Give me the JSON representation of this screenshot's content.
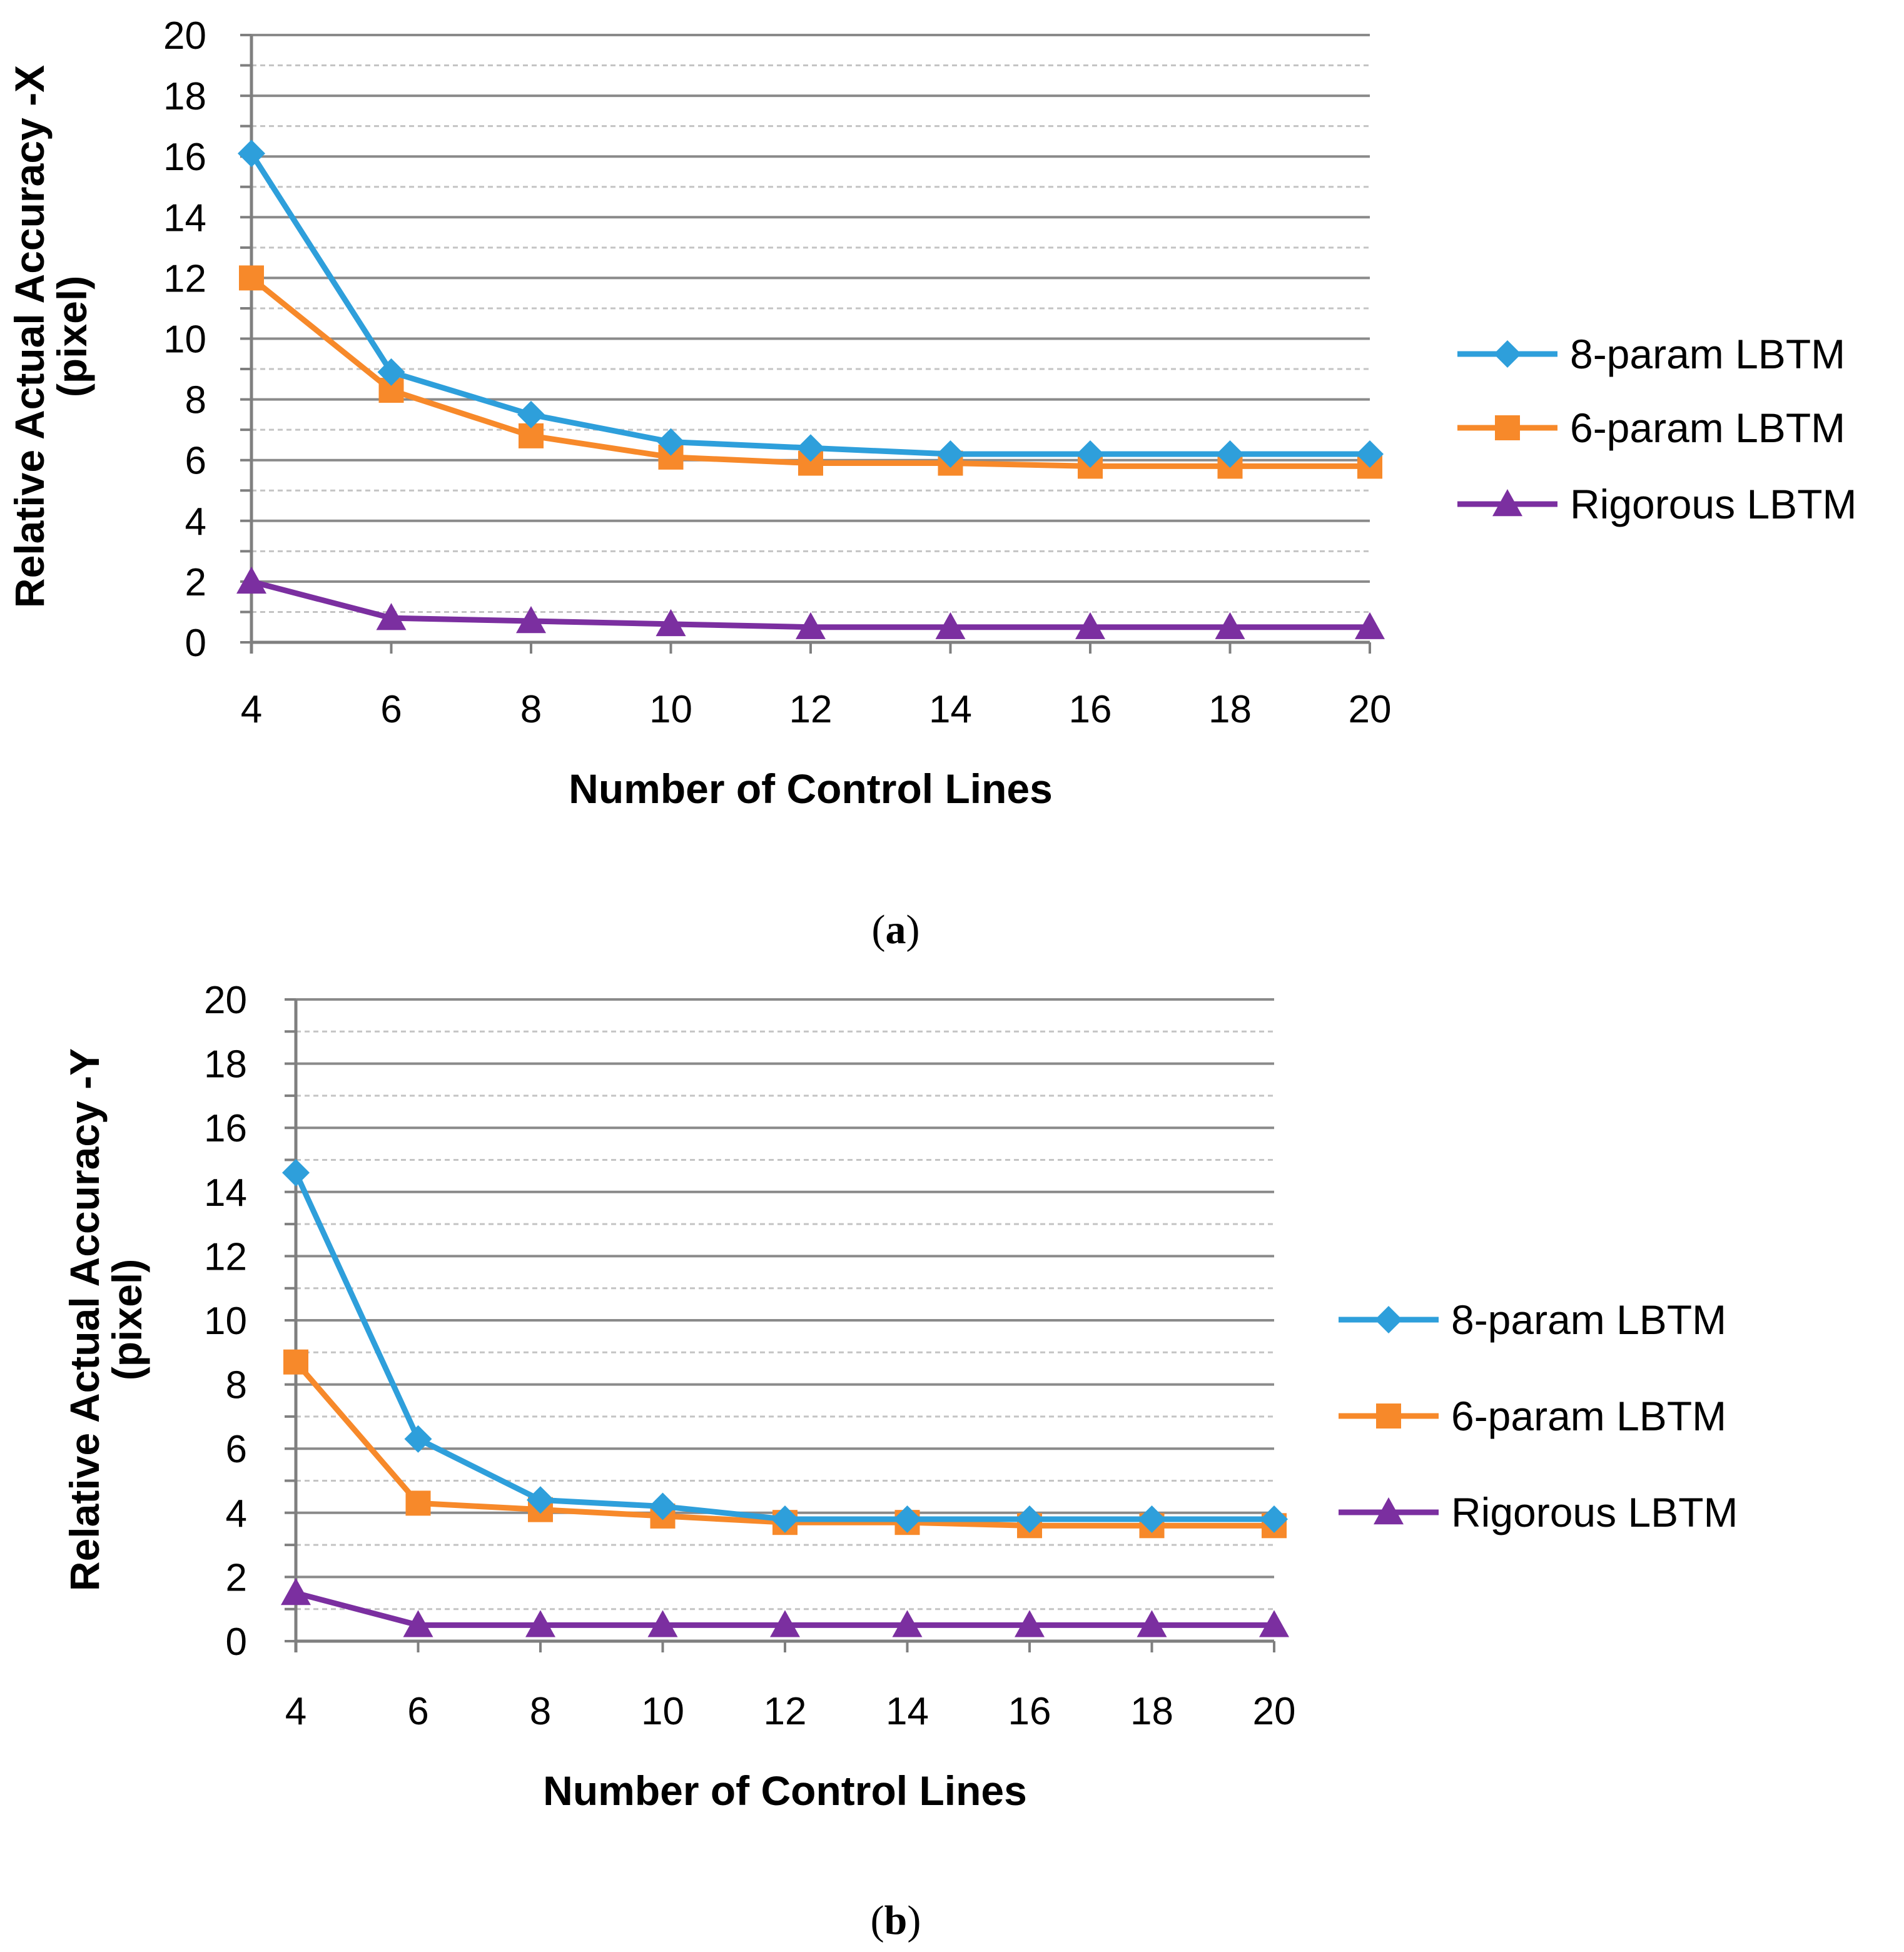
{
  "chart_data": [
    {
      "type": "line",
      "panel_label": "a",
      "xlabel": "Number of Control Lines",
      "ylabel_line1": "Relative Actual Accuracy -X",
      "ylabel_line2": "(pixel)",
      "x": [
        4,
        6,
        8,
        10,
        12,
        14,
        16,
        18,
        20
      ],
      "xticks": [
        "4",
        "6",
        "8",
        "10",
        "12",
        "14",
        "16",
        "18",
        "20"
      ],
      "ylim": [
        0,
        20
      ],
      "yticks": [
        "0",
        "2",
        "4",
        "6",
        "8",
        "10",
        "12",
        "14",
        "16",
        "18",
        "20"
      ],
      "major_grid_step": 2,
      "minor_grid": true,
      "legend_position": "right",
      "series": [
        {
          "name": "8-param LBTM",
          "color": "#2E9FDB",
          "marker": "diamond",
          "values": [
            16.1,
            8.9,
            7.5,
            6.6,
            6.4,
            6.2,
            6.2,
            6.2,
            6.2
          ]
        },
        {
          "name": "6-param LBTM",
          "color": "#F7892A",
          "marker": "square",
          "values": [
            12.0,
            8.3,
            6.8,
            6.1,
            5.9,
            5.9,
            5.8,
            5.8,
            5.8
          ]
        },
        {
          "name": "Rigorous LBTM",
          "color": "#7B2FA0",
          "marker": "triangle",
          "values": [
            2.0,
            0.8,
            0.7,
            0.6,
            0.5,
            0.5,
            0.5,
            0.5,
            0.5
          ]
        }
      ]
    },
    {
      "type": "line",
      "panel_label": "b",
      "xlabel": "Number of Control Lines",
      "ylabel_line1": "Relative Actual Accuracy -Y",
      "ylabel_line2": "(pixel)",
      "x": [
        4,
        6,
        8,
        10,
        12,
        14,
        16,
        18,
        20
      ],
      "xticks": [
        "4",
        "6",
        "8",
        "10",
        "12",
        "14",
        "16",
        "18",
        "20"
      ],
      "ylim": [
        0,
        20
      ],
      "yticks": [
        "0",
        "2",
        "4",
        "6",
        "8",
        "10",
        "12",
        "14",
        "16",
        "18",
        "20"
      ],
      "major_grid_step": 2,
      "minor_grid": true,
      "legend_position": "right",
      "series": [
        {
          "name": "8-param LBTM",
          "color": "#2E9FDB",
          "marker": "diamond",
          "values": [
            14.6,
            6.3,
            4.4,
            4.2,
            3.8,
            3.8,
            3.8,
            3.8,
            3.8
          ]
        },
        {
          "name": "6-param LBTM",
          "color": "#F7892A",
          "marker": "square",
          "values": [
            8.7,
            4.3,
            4.1,
            3.9,
            3.7,
            3.7,
            3.6,
            3.6,
            3.6
          ]
        },
        {
          "name": "Rigorous LBTM",
          "color": "#7B2FA0",
          "marker": "triangle",
          "values": [
            1.5,
            0.5,
            0.5,
            0.5,
            0.5,
            0.5,
            0.5,
            0.5,
            0.5
          ]
        }
      ]
    }
  ]
}
